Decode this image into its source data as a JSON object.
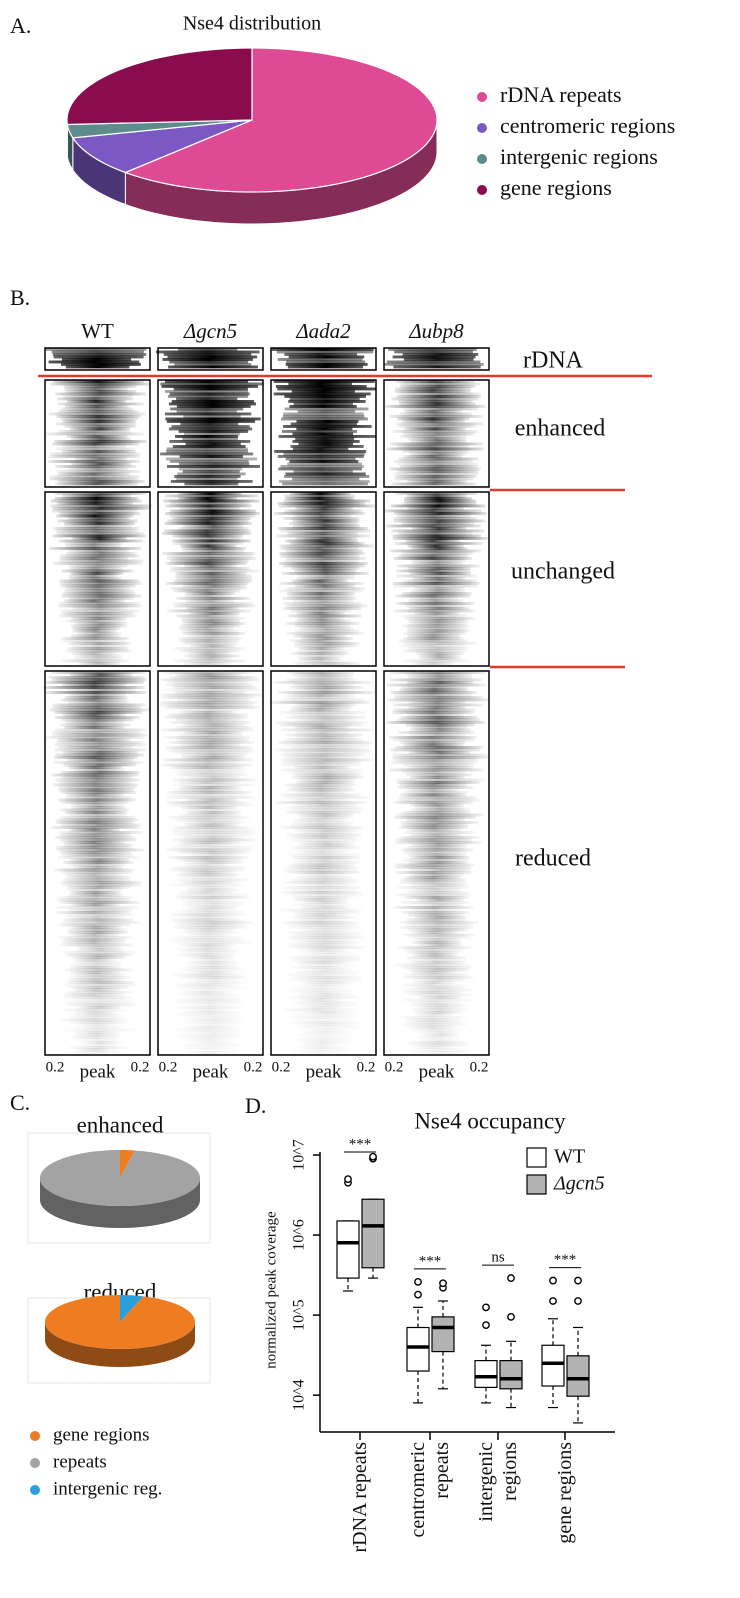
{
  "panel_labels": [
    "A.",
    "B.",
    "C.",
    "D."
  ],
  "heatmap": {
    "columns": [
      "WT",
      "Δgcn5",
      "Δada2",
      "Δubp8"
    ],
    "rows": [
      "rDNA",
      "enhanced",
      "unchanged",
      "reduced"
    ],
    "x_tick_labels": [
      "0.2",
      "peak",
      "0.2"
    ]
  },
  "chart_data": [
    {
      "type": "pie",
      "title": "Nse4 distribution",
      "categories": [
        "rDNA repeats",
        "centromeric regions",
        "intergenic regions",
        "gene regions"
      ],
      "values": [
        62,
        9,
        3,
        26
      ],
      "colors": [
        "#df4a94",
        "#7b58c4",
        "#5e8c8c",
        "#8a0c4f"
      ],
      "legend": true
    },
    {
      "type": "pie",
      "title": "enhanced",
      "categories": [
        "gene regions",
        "repeats",
        "intergenic reg."
      ],
      "values": [
        3,
        97,
        0
      ],
      "colors": [
        "#ee7d22",
        "#a3a3a3",
        "#2a9fdc"
      ],
      "legend": false
    },
    {
      "type": "pie",
      "title": "reduced",
      "categories": [
        "gene regions",
        "repeats",
        "intergenic reg."
      ],
      "values": [
        95,
        0,
        5
      ],
      "colors": [
        "#ee7d22",
        "#a3a3a3",
        "#2a9fdc"
      ],
      "legend": true
    },
    {
      "type": "box",
      "title": "Nse4 occupancy",
      "y_label": "normalized peak coverage",
      "categories": [
        "rDNA repeats",
        "centromeric repeats",
        "intergenic regions",
        "gene regions"
      ],
      "log_scale": true,
      "ylim": [
        4000,
        10000000
      ],
      "yticks": [
        {
          "value": 10000,
          "label": "10^4"
        },
        {
          "value": 100000,
          "label": "10^5"
        },
        {
          "value": 1000000,
          "label": "10^6"
        },
        {
          "value": 10000000,
          "label": "10^7"
        }
      ],
      "significance": [
        "***",
        "***",
        "ns",
        "***"
      ],
      "series": [
        {
          "name": "WT",
          "color": "#ffffff",
          "values": [
            {
              "min": 200000,
              "q1": 290000,
              "median": 800000,
              "q3": 1500000,
              "max": 1500000,
              "outliers": [
                4500000,
                5000000
              ]
            },
            {
              "min": 8000,
              "q1": 20000,
              "median": 40000,
              "q3": 70000,
              "max": 125000,
              "outliers": [
                180000,
                260000
              ]
            },
            {
              "min": 8000,
              "q1": 12500,
              "median": 17000,
              "q3": 27000,
              "max": 42000,
              "outliers": [
                75000,
                125000
              ]
            },
            {
              "min": 7000,
              "q1": 13000,
              "median": 25000,
              "q3": 42000,
              "max": 90000,
              "outliers": [
                150000,
                270000
              ]
            }
          ]
        },
        {
          "name": "Δgcn5",
          "color": "#b3b3b3",
          "values": [
            {
              "min": 290000,
              "q1": 390000,
              "median": 1300000,
              "q3": 2800000,
              "max": 2800000,
              "outliers": [
                9000000,
                9500000
              ]
            },
            {
              "min": 12000,
              "q1": 35000,
              "median": 70000,
              "q3": 95000,
              "max": 150000,
              "outliers": [
                220000,
                250000
              ]
            },
            {
              "min": 7000,
              "q1": 12000,
              "median": 16000,
              "q3": 27000,
              "max": 47000,
              "outliers": [
                95000,
                290000
              ]
            },
            {
              "min": 4500,
              "q1": 9700,
              "median": 16000,
              "q3": 31000,
              "max": 70000,
              "outliers": [
                150000,
                270000
              ]
            }
          ]
        }
      ]
    }
  ]
}
